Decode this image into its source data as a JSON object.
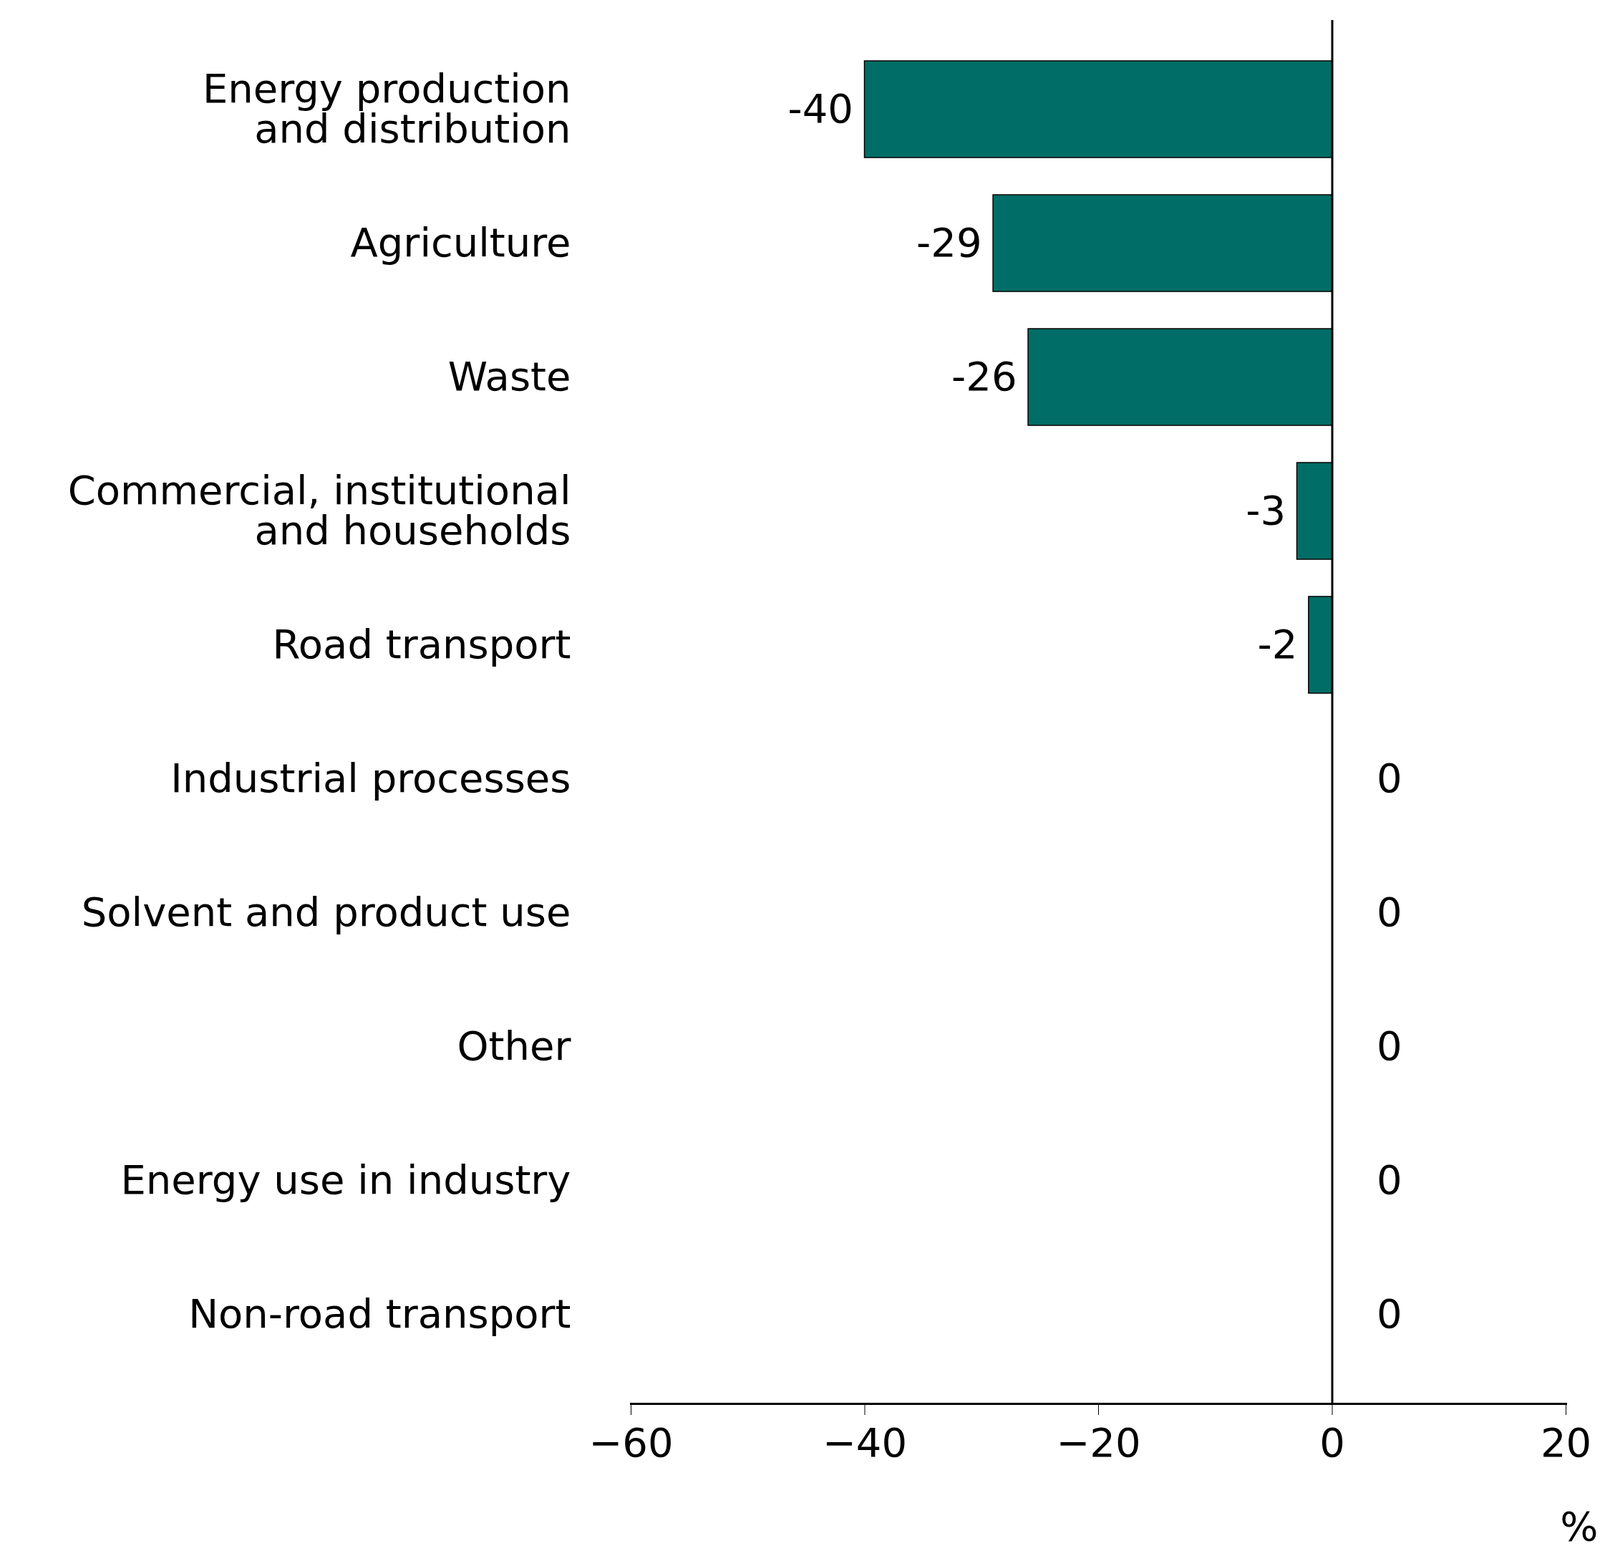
{
  "chart_data": {
    "type": "bar",
    "orientation": "horizontal",
    "categories": [
      "Energy production\nand distribution",
      "Agriculture",
      "Waste",
      "Commercial, institutional\nand households",
      "Road transport",
      "Industrial processes",
      "Solvent and product use",
      "Other",
      "Energy use in industry",
      "Non-road transport"
    ],
    "values": [
      -40,
      -29,
      -26,
      -3,
      -2,
      0,
      0,
      0,
      0,
      0
    ],
    "color": "#006e66",
    "xlabel": "%",
    "xlim": [
      -60,
      20
    ],
    "xticks": [
      {
        "value": -60,
        "label": "−60"
      },
      {
        "value": -40,
        "label": "−40"
      },
      {
        "value": -20,
        "label": "−20"
      },
      0,
      20
    ],
    "data_labels": true,
    "grid": false
  }
}
